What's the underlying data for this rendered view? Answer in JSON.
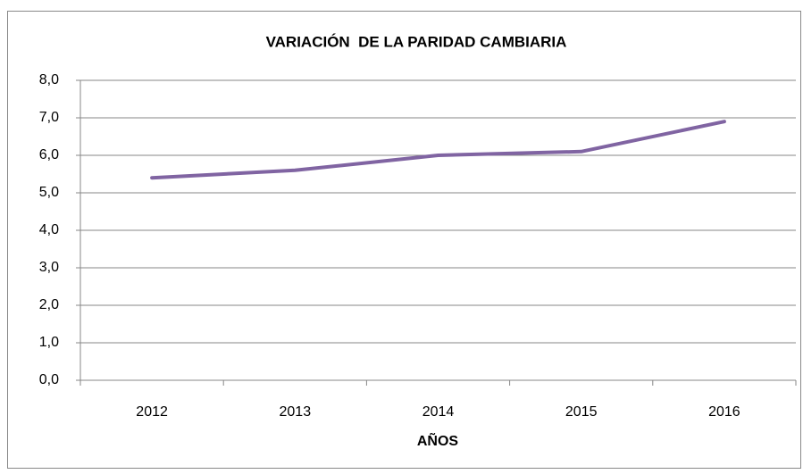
{
  "chart_data": {
    "type": "line",
    "title": "VARIACIÓN  DE LA PARIDAD CAMBIARIA",
    "x_label": "AÑOS",
    "categories": [
      "2012",
      "2013",
      "2014",
      "2015",
      "2016"
    ],
    "values": [
      5.4,
      5.6,
      6.0,
      6.1,
      6.9
    ],
    "color": "#8064a2",
    "ylim": [
      0,
      8
    ],
    "yticks": [
      {
        "value": 0,
        "label": "0,0"
      },
      {
        "value": 1,
        "label": "1,0"
      },
      {
        "value": 2,
        "label": "2,0"
      },
      {
        "value": 3,
        "label": "3,0"
      },
      {
        "value": 4,
        "label": "4,0"
      },
      {
        "value": 5,
        "label": "5,0"
      },
      {
        "value": 6,
        "label": "6,0"
      },
      {
        "value": 7,
        "label": "7,0"
      },
      {
        "value": 8,
        "label": "8,0"
      }
    ],
    "grid": true
  }
}
